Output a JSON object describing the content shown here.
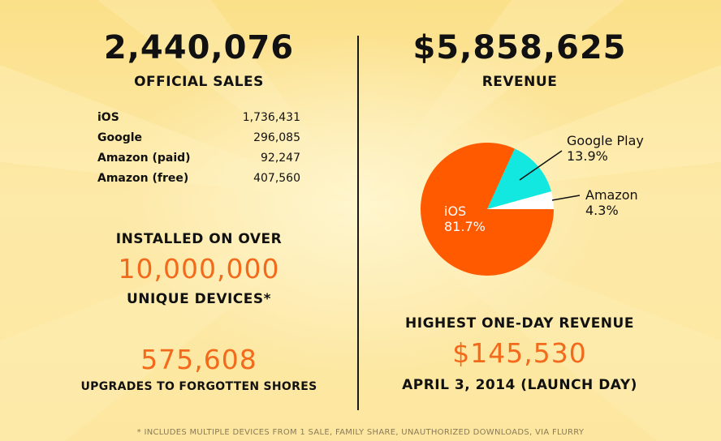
{
  "left": {
    "total_sales": "2,440,076",
    "sales_label": "OFFICIAL SALES",
    "platforms": [
      {
        "name": "iOS",
        "value": "1,736,431"
      },
      {
        "name": "Google",
        "value": "296,085"
      },
      {
        "name": "Amazon (paid)",
        "value": "92,247"
      },
      {
        "name": "Amazon (free)",
        "value": "407,560"
      }
    ],
    "installed_prefix": "INSTALLED ON OVER",
    "installed_count": "10,000,000",
    "installed_suffix": "UNIQUE DEVICES*",
    "upgrades_count": "575,608",
    "upgrades_label": "UPGRADES TO FORGOTTEN SHORES"
  },
  "right": {
    "revenue_total": "$5,858,625",
    "revenue_label": "REVENUE",
    "highest_label": "HIGHEST ONE-DAY REVENUE",
    "highest_value": "$145,530",
    "highest_date": "APRIL 3, 2014 (LAUNCH DAY)"
  },
  "chart_data": {
    "type": "pie",
    "slices": [
      {
        "name": "iOS",
        "label": "81.7%",
        "value": 81.7,
        "color": "#ff5a00"
      },
      {
        "name": "Google Play",
        "label": "13.9%",
        "value": 13.9,
        "color": "#12e8e0"
      },
      {
        "name": "Amazon",
        "label": "4.3%",
        "value": 4.3,
        "color": "#ffffff"
      }
    ]
  },
  "footnote": "* INCLUDES MULTIPLE DEVICES FROM 1 SALE, FAMILY SHARE, UNAUTHORIZED DOWNLOADS, VIA FLURRY"
}
